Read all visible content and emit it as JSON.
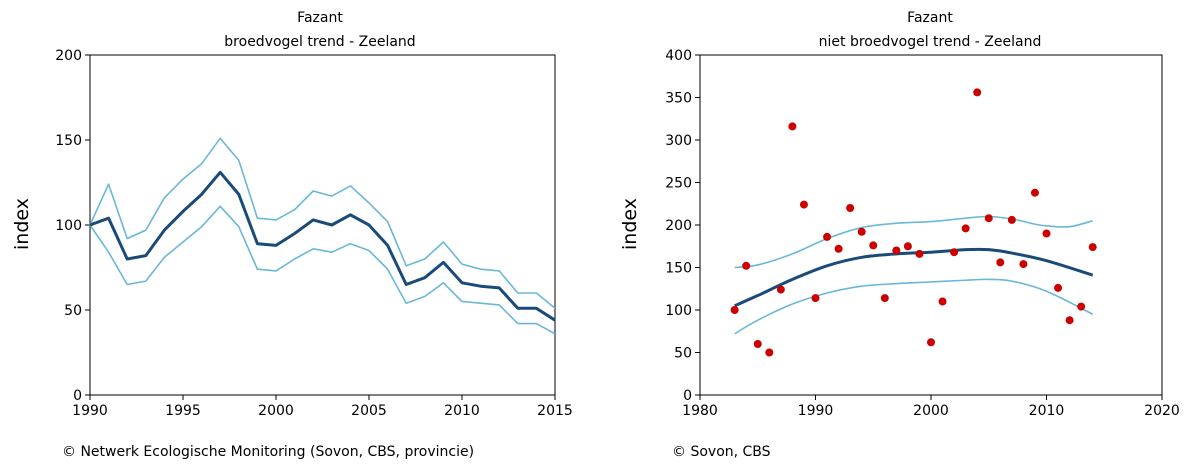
{
  "chart_data": [
    {
      "type": "line",
      "title": "Fazant",
      "subtitle": "broedvogel trend - Zeeland",
      "ylabel": "index",
      "xlim": [
        1990,
        2015
      ],
      "ylim": [
        0,
        200
      ],
      "xticks": [
        1990,
        1995,
        2000,
        2005,
        2010,
        2015
      ],
      "yticks": [
        0,
        50,
        100,
        150,
        200
      ],
      "x": [
        1990,
        1991,
        1992,
        1993,
        1994,
        1995,
        1996,
        1997,
        1998,
        1999,
        2000,
        2001,
        2002,
        2003,
        2004,
        2005,
        2006,
        2007,
        2008,
        2009,
        2010,
        2011,
        2012,
        2013,
        2014,
        2015
      ],
      "series": [
        {
          "role": "trend",
          "color": "#1a4a7a",
          "values": [
            100,
            104,
            80,
            82,
            97,
            108,
            118,
            131,
            118,
            89,
            88,
            95,
            103,
            100,
            106,
            100,
            88,
            65,
            69,
            78,
            66,
            64,
            63,
            51,
            51,
            44
          ]
        },
        {
          "role": "upper",
          "color": "#6ab7d8",
          "values": [
            100,
            124,
            92,
            97,
            116,
            127,
            136,
            151,
            138,
            104,
            103,
            109,
            120,
            117,
            123,
            113,
            102,
            76,
            80,
            90,
            77,
            74,
            73,
            60,
            60,
            51
          ]
        },
        {
          "role": "lower",
          "color": "#6ab7d8",
          "values": [
            100,
            84,
            65,
            67,
            81,
            90,
            99,
            111,
            99,
            74,
            73,
            80,
            86,
            84,
            89,
            85,
            74,
            54,
            58,
            66,
            55,
            54,
            53,
            42,
            42,
            36
          ]
        }
      ],
      "grid": false,
      "credit": "© Netwerk Ecologische Monitoring (Sovon, CBS, provincie)"
    },
    {
      "type": "scatter",
      "title": "Fazant",
      "subtitle": "niet broedvogel trend - Zeeland",
      "ylabel": "index",
      "xlim": [
        1980,
        2020
      ],
      "ylim": [
        0,
        400
      ],
      "xticks": [
        1980,
        1990,
        2000,
        2010,
        2020
      ],
      "yticks": [
        0,
        50,
        100,
        150,
        200,
        250,
        300,
        350,
        400
      ],
      "points": {
        "color": "#cc0000",
        "x": [
          1983,
          1984,
          1985,
          1986,
          1987,
          1988,
          1989,
          1990,
          1991,
          1992,
          1993,
          1994,
          1995,
          1996,
          1997,
          1998,
          1999,
          2000,
          2001,
          2002,
          2003,
          2004,
          2005,
          2006,
          2007,
          2008,
          2009,
          2010,
          2011,
          2012,
          2013,
          2014
        ],
        "y": [
          100,
          152,
          60,
          50,
          124,
          316,
          224,
          114,
          186,
          172,
          220,
          192,
          176,
          114,
          170,
          175,
          166,
          62,
          110,
          168,
          196,
          356,
          208,
          156,
          206,
          154,
          238,
          190,
          126,
          88,
          104,
          174
        ]
      },
      "trend": {
        "color": "#1a4a7a",
        "x": [
          1983,
          1985,
          1988,
          1991,
          1994,
          1997,
          2000,
          2003,
          2005,
          2007,
          2010,
          2014
        ],
        "y": [
          105,
          117,
          136,
          152,
          162,
          166,
          168,
          171,
          171,
          167,
          158,
          141
        ]
      },
      "upper": {
        "color": "#6ab7d8",
        "x": [
          1983,
          1985,
          1988,
          1991,
          1994,
          1997,
          2000,
          2003,
          2005,
          2007,
          2009,
          2010,
          2012,
          2014
        ],
        "y": [
          150,
          153,
          166,
          184,
          197,
          202,
          204,
          208,
          210,
          207,
          201,
          199,
          198,
          205
        ]
      },
      "lower": {
        "color": "#6ab7d8",
        "x": [
          1983,
          1985,
          1988,
          1991,
          1994,
          1997,
          2000,
          2003,
          2005,
          2007,
          2010,
          2014
        ],
        "y": [
          72,
          88,
          107,
          120,
          128,
          131,
          133,
          135,
          136,
          134,
          122,
          95
        ]
      },
      "grid": false,
      "credit": "© Sovon, CBS"
    }
  ]
}
